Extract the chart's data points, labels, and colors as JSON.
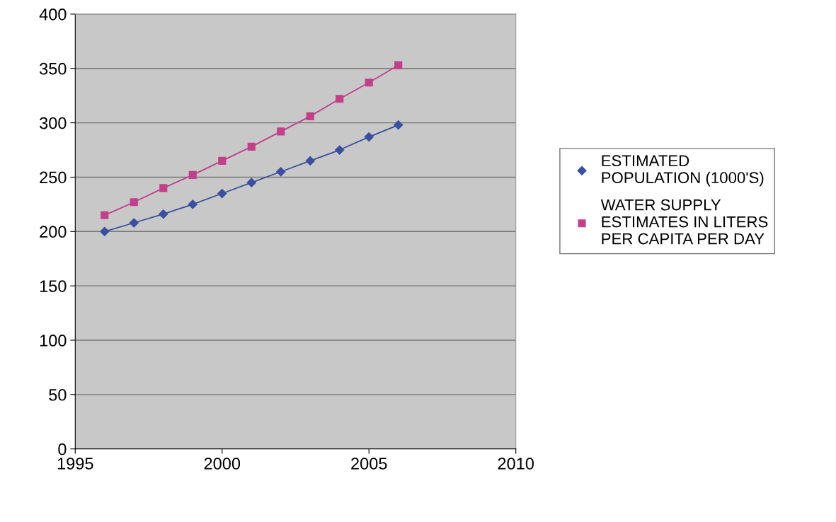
{
  "chart_data": {
    "type": "line",
    "x": [
      1996,
      1997,
      1998,
      1999,
      2000,
      2001,
      2002,
      2003,
      2004,
      2005,
      2006
    ],
    "series": [
      {
        "name": "ESTIMATED\nPOPULATION (1000'S)",
        "color": "#3b4f9e",
        "marker": "diamond",
        "values": [
          200,
          208,
          216,
          225,
          235,
          245,
          255,
          265,
          275,
          287,
          298
        ]
      },
      {
        "name": "WATER SUPPLY\nESTIMATES IN LITERS\nPER CAPITA PER DAY",
        "color": "#c0408a",
        "marker": "square",
        "values": [
          215,
          227,
          240,
          252,
          265,
          278,
          292,
          306,
          322,
          337,
          353
        ]
      }
    ],
    "xlim": [
      1995,
      2010
    ],
    "xticks": [
      1995,
      2000,
      2005,
      2010
    ],
    "ylim": [
      0,
      400
    ],
    "yticks": [
      0,
      50,
      100,
      150,
      200,
      250,
      300,
      350,
      400
    ],
    "grid": "y",
    "legend": "right",
    "line_style": "solid"
  }
}
